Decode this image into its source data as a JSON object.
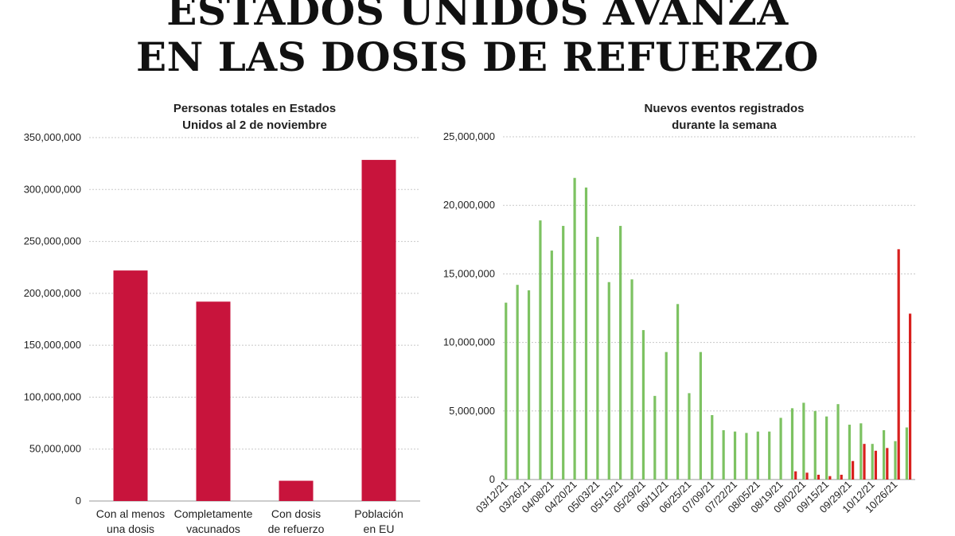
{
  "headline": {
    "line1": "ESTADOS UNIDOS AVANZA",
    "line2": "EN LAS DOSIS DE REFUERZO"
  },
  "colors": {
    "left_bar": "#c8143c",
    "green": "#7dc262",
    "red": "#d8201e"
  },
  "chart_data": [
    {
      "type": "bar",
      "title_line1": "Personas totales en Estados",
      "title_line2": "Unidos al 2 de noviembre",
      "categories": [
        [
          "Con al menos",
          "una dosis"
        ],
        [
          "Completamente",
          "vacunados"
        ],
        [
          "Con dosis",
          "de refuerzo"
        ],
        [
          "Población",
          "en EU"
        ]
      ],
      "values": [
        222000000,
        192000000,
        19500000,
        328500000
      ],
      "ylim": [
        0,
        350000000
      ],
      "yticks": [
        0,
        50000000,
        100000000,
        150000000,
        200000000,
        250000000,
        300000000,
        350000000
      ],
      "ytick_labels": [
        "0",
        "50,000,000",
        "100,000,000",
        "150,000,000",
        "200,000,000",
        "250,000,000",
        "300,000,000",
        "350,000,000"
      ],
      "grid": true
    },
    {
      "type": "bar",
      "title_line1": "Nuevos eventos registrados",
      "title_line2": "durante la semana",
      "ylim": [
        0,
        25000000
      ],
      "yticks": [
        0,
        5000000,
        10000000,
        15000000,
        20000000,
        25000000
      ],
      "ytick_labels": [
        "0",
        "5,000,000",
        "10,000,000",
        "15,000,000",
        "20,000,000",
        "25,000,000"
      ],
      "grid": true,
      "x_tick_labels": [
        "03/12/21",
        "03/26/21",
        "04/08/21",
        "04/20/21",
        "05/03/21",
        "05/15/21",
        "05/29/21",
        "06/11/21",
        "06/25/21",
        "07/09/21",
        "07/22/21",
        "08/05/21",
        "08/19/21",
        "09/02/21",
        "09/15/21",
        "09/29/21",
        "10/12/21",
        "10/26/21"
      ],
      "series": [
        {
          "name": "green",
          "values": [
            12900000,
            14200000,
            13800000,
            18900000,
            16700000,
            18500000,
            22000000,
            21300000,
            17700000,
            14400000,
            18500000,
            14600000,
            10900000,
            6100000,
            9300000,
            12800000,
            6300000,
            9300000,
            4700000,
            3600000,
            3500000,
            3400000,
            3500000,
            3500000,
            4500000,
            5200000,
            5600000,
            5000000,
            4600000,
            5500000,
            4000000,
            4100000,
            2600000,
            3600000,
            2800000,
            3800000
          ]
        },
        {
          "name": "red",
          "values": [
            0,
            0,
            0,
            0,
            0,
            0,
            0,
            0,
            0,
            0,
            0,
            0,
            0,
            0,
            0,
            0,
            0,
            0,
            0,
            0,
            0,
            0,
            0,
            0,
            0,
            600000,
            500000,
            350000,
            250000,
            350000,
            1350000,
            2600000,
            2100000,
            2300000,
            16800000,
            12100000
          ]
        }
      ]
    }
  ]
}
